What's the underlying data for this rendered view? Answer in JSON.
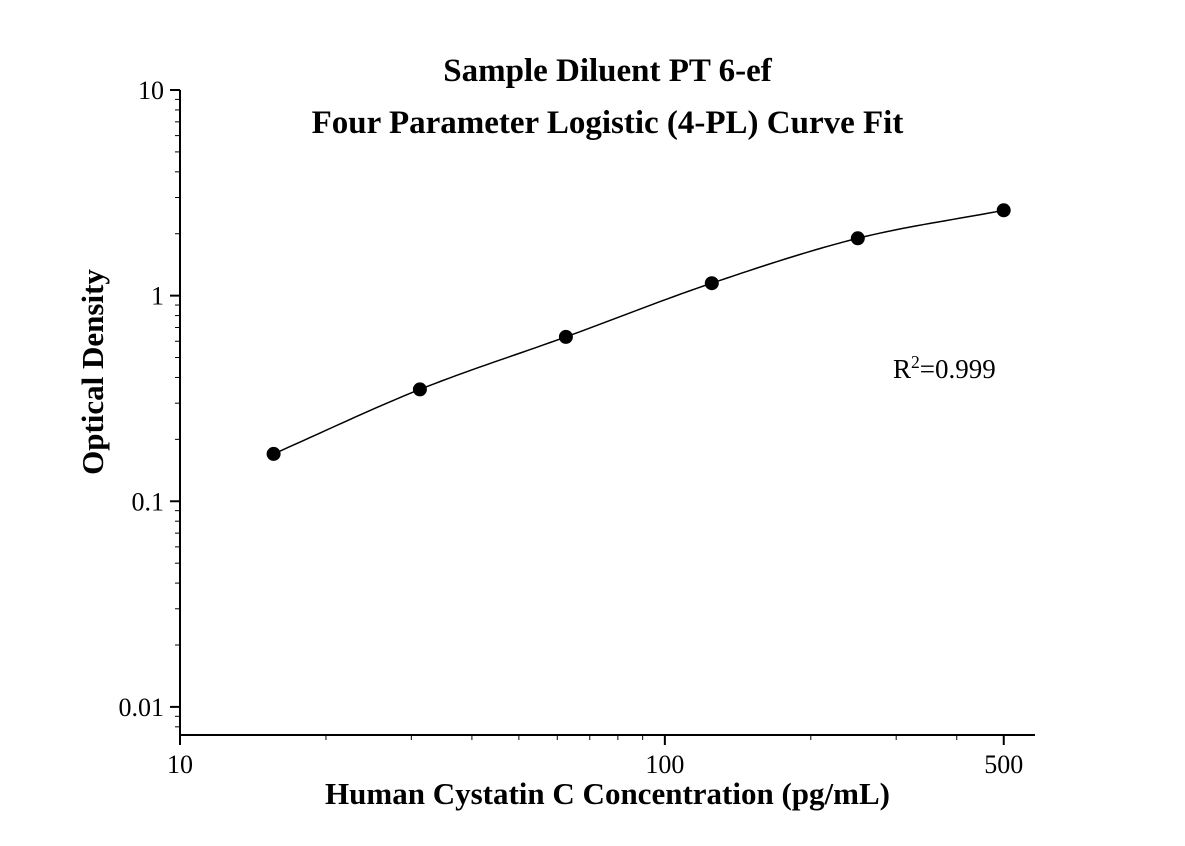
{
  "chart_data": {
    "type": "scatter",
    "title_line1": "Sample Diluent PT 6-ef",
    "title_line2": "Four Parameter Logistic (4-PL) Curve Fit",
    "xlabel": "Human Cystatin C Concentration (pg/mL)",
    "ylabel": "Optical Density",
    "annotation": {
      "prefix": "R",
      "sup": "2",
      "suffix": "=0.999"
    },
    "xscale": "log",
    "yscale": "log",
    "xlim": [
      10,
      580
    ],
    "ylim": [
      0.0073,
      10
    ],
    "x": [
      15.6,
      31.25,
      62.5,
      125,
      250,
      500
    ],
    "y": [
      0.17,
      0.35,
      0.63,
      1.15,
      1.9,
      2.6
    ],
    "x_ticks": [
      {
        "value": 10,
        "label": "10"
      },
      {
        "value": 100,
        "label": "100"
      },
      {
        "value": 500,
        "label": "500"
      }
    ],
    "y_ticks": [
      {
        "value": 10,
        "label": "10"
      },
      {
        "value": 1,
        "label": "1"
      },
      {
        "value": 0.1,
        "label": "0.1"
      },
      {
        "value": 0.01,
        "label": "0.01"
      }
    ],
    "grid": false,
    "legend": false,
    "marker_color": "#000000",
    "line_color": "#000000",
    "background": "#ffffff"
  }
}
